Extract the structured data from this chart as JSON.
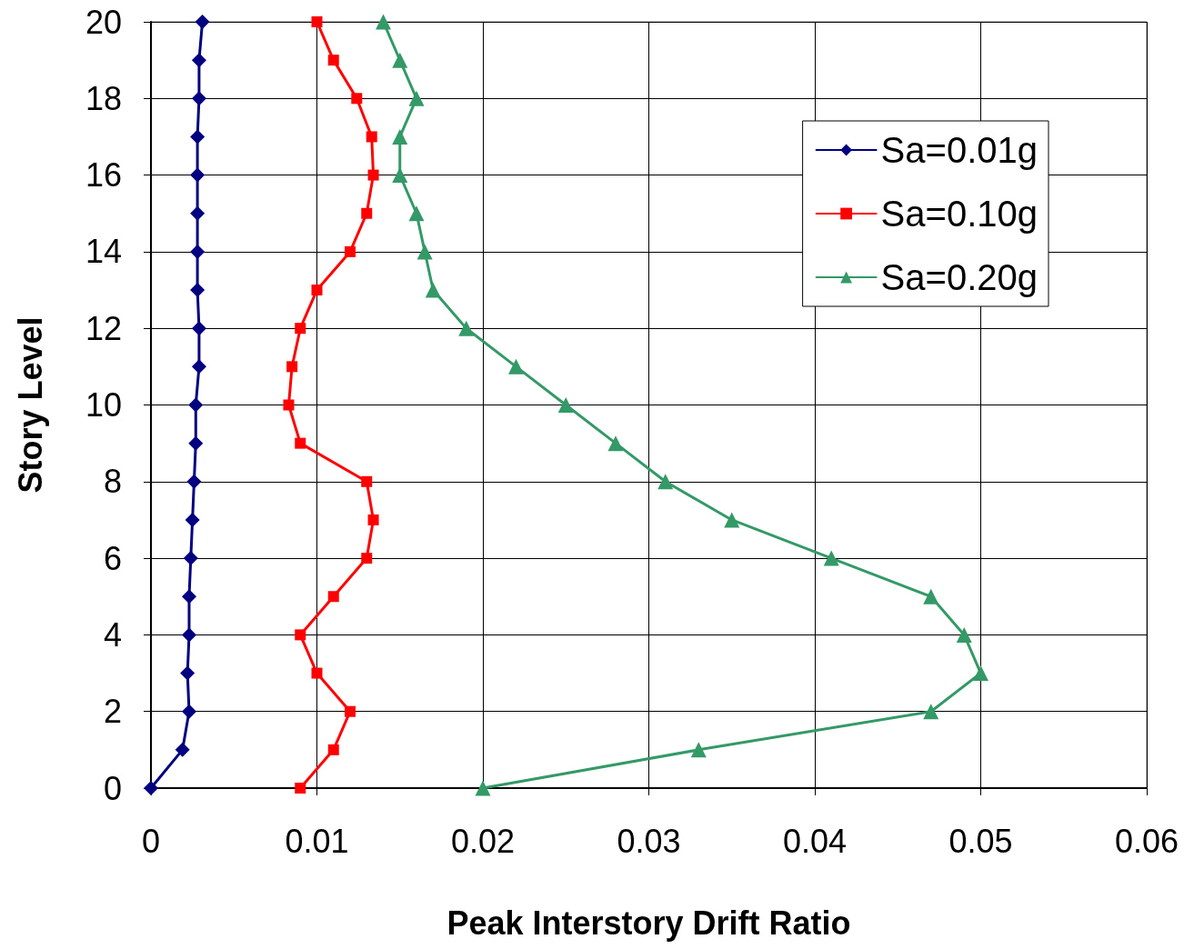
{
  "chart_data": {
    "type": "line",
    "xlabel": "Peak Interstory Drift Ratio",
    "ylabel": "Story Level",
    "xlim": [
      0,
      0.06
    ],
    "xticks": [
      0,
      0.01,
      0.02,
      0.03,
      0.04,
      0.05,
      0.06
    ],
    "ylim": [
      0,
      20
    ],
    "yticks": [
      0,
      2,
      4,
      6,
      8,
      10,
      12,
      14,
      16,
      18,
      20
    ],
    "grid": true,
    "legend": "top right",
    "line_style": "solid",
    "series": [
      {
        "name": "Sa=0.01g",
        "color": "#000080",
        "marker": "diamond",
        "x": [
          0,
          0.0019,
          0.0023,
          0.0022,
          0.0023,
          0.0023,
          0.0024,
          0.0025,
          0.0026,
          0.0027,
          0.0027,
          0.0029,
          0.0029,
          0.0028,
          0.0028,
          0.0028,
          0.0028,
          0.0028,
          0.0029,
          0.0029,
          0.0031
        ],
        "values": [
          0,
          1,
          2,
          3,
          4,
          5,
          6,
          7,
          8,
          9,
          10,
          11,
          12,
          13,
          14,
          15,
          16,
          17,
          18,
          19,
          20
        ]
      },
      {
        "name": "Sa=0.10g",
        "color": "#ff0000",
        "marker": "square",
        "x": [
          0.009,
          0.011,
          0.012,
          0.01,
          0.009,
          0.011,
          0.013,
          0.0134,
          0.013,
          0.009,
          0.0083,
          0.0085,
          0.009,
          0.01,
          0.012,
          0.013,
          0.0134,
          0.0133,
          0.0124,
          0.011,
          0.01
        ],
        "values": [
          0,
          1,
          2,
          3,
          4,
          5,
          6,
          7,
          8,
          9,
          10,
          11,
          12,
          13,
          14,
          15,
          16,
          17,
          18,
          19,
          20
        ]
      },
      {
        "name": "Sa=0.20g",
        "color": "#339966",
        "marker": "triangle",
        "x": [
          0.02,
          0.033,
          0.047,
          0.05,
          0.049,
          0.047,
          0.041,
          0.035,
          0.031,
          0.028,
          0.025,
          0.022,
          0.019,
          0.017,
          0.0165,
          0.016,
          0.015,
          0.015,
          0.016,
          0.015,
          0.014
        ],
        "values": [
          0,
          1,
          2,
          3,
          4,
          5,
          6,
          7,
          8,
          9,
          10,
          11,
          12,
          13,
          14,
          15,
          16,
          17,
          18,
          19,
          20
        ]
      }
    ]
  }
}
